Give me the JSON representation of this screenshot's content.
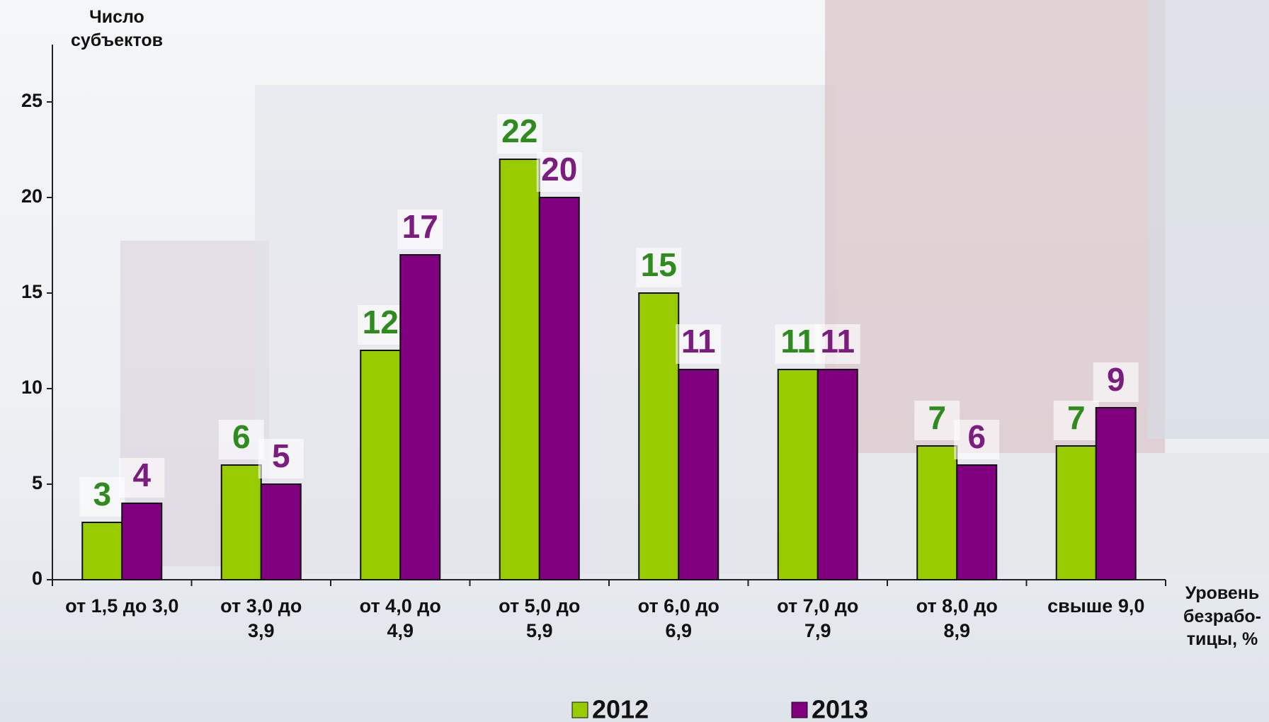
{
  "chart_data": {
    "type": "bar",
    "y_label": "Число\nсубъектов",
    "x_label": "Уровень\nбезрабо-\nтицы, %",
    "categories": [
      "от  1,5 до 3,0",
      "от 3,0 до\n3,9",
      "от 4,0 до\n4,9",
      "от 5,0 до\n5,9",
      "от 6,0 до\n6,9",
      "от 7,0 до\n7,9",
      "от 8,0 до\n8,9",
      "свыше 9,0"
    ],
    "series": [
      {
        "name": "2012",
        "color": "#99cc00",
        "label_color": "#2e8b1e",
        "values": [
          3,
          6,
          12,
          22,
          15,
          11,
          7,
          7
        ]
      },
      {
        "name": "2013",
        "color": "#800080",
        "label_color": "#7b1d7e",
        "values": [
          4,
          5,
          17,
          20,
          11,
          11,
          6,
          9
        ]
      }
    ],
    "ylim": [
      0,
      28
    ],
    "yticks": [
      0,
      5,
      10,
      15,
      20,
      25
    ]
  }
}
